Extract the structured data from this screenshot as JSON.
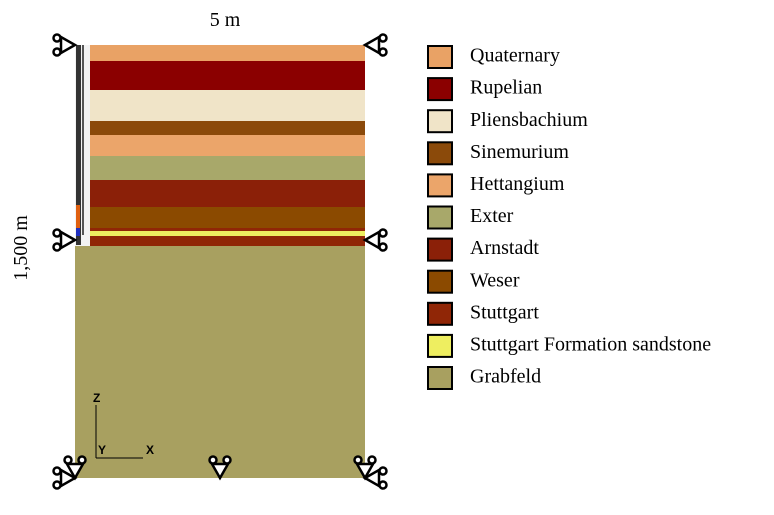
{
  "width_label": "5 m",
  "depth_label": "1,500 m",
  "axes": {
    "z": "Z",
    "y": "Y",
    "x": "X"
  },
  "legend": [
    {
      "name": "Quaternary",
      "color": "#e9a265"
    },
    {
      "name": "Rupelian",
      "color": "#8b0000"
    },
    {
      "name": "Pliensbachium",
      "color": "#f0e4c8"
    },
    {
      "name": "Sinemurium",
      "color": "#8b4a0a"
    },
    {
      "name": "Hettangium",
      "color": "#eba56a"
    },
    {
      "name": "Exter",
      "color": "#a8a86a"
    },
    {
      "name": "Arnstadt",
      "color": "#8b2008"
    },
    {
      "name": "Weser",
      "color": "#8b4a00"
    },
    {
      "name": "Stuttgart",
      "color": "#902606"
    },
    {
      "name": "Stuttgart Formation sandstone",
      "color": "#eeee60"
    },
    {
      "name": "Grabfeld",
      "color": "#a8a060"
    }
  ]
}
